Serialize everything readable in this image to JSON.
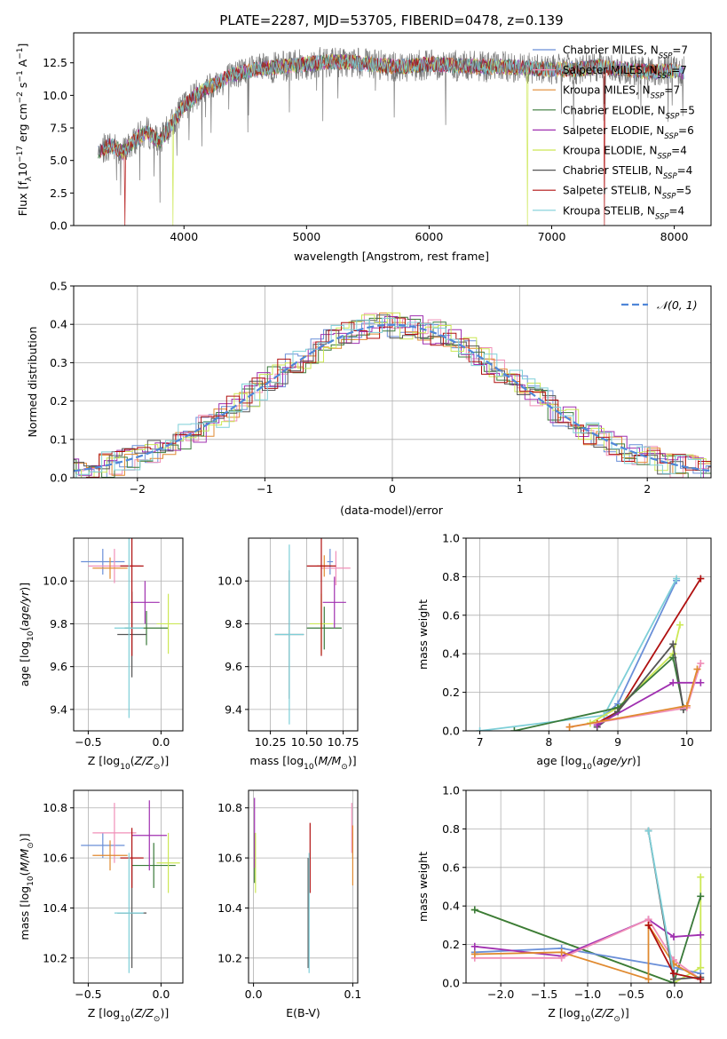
{
  "title": "PLATE=2287, MJD=53705, FIBERID=0478, z=0.139",
  "colors": {
    "Chabrier MILES": "#6a8fd8",
    "Salpeter MILES": "#f08fb8",
    "Kroupa MILES": "#e08a30",
    "Chabrier ELODIE": "#3a7a3a",
    "Salpeter ELODIE": "#a030b0",
    "Kroupa ELODIE": "#cce855",
    "Chabrier STELIB": "#555555",
    "Salpeter STELIB": "#b01010",
    "Kroupa STELIB": "#7ecfd8",
    "gaussian": "#4f86d8",
    "data": "#777777"
  },
  "chart_data": [
    {
      "type": "line",
      "xlabel": "wavelength [Angstrom, rest frame]",
      "ylabel": "Flux [f_λ 10^-17 erg cm^-2 s^-1 A^-1]",
      "xlim": [
        3100,
        8300
      ],
      "ylim": [
        0,
        14.8
      ],
      "xticks": [
        "4000",
        "5000",
        "6000",
        "7000",
        "8000"
      ],
      "yticks": [
        "0.0",
        "2.5",
        "5.0",
        "7.5",
        "10.0",
        "12.5"
      ],
      "legend_position": "right",
      "legend": [
        {
          "model": "Chabrier MILES",
          "nssp": "7"
        },
        {
          "model": "Salpeter MILES",
          "nssp": "7"
        },
        {
          "model": "Kroupa MILES",
          "nssp": "7"
        },
        {
          "model": "Chabrier ELODIE",
          "nssp": "5"
        },
        {
          "model": "Salpeter ELODIE",
          "nssp": "6"
        },
        {
          "model": "Kroupa ELODIE",
          "nssp": "4"
        },
        {
          "model": "Chabrier STELIB",
          "nssp": "4"
        },
        {
          "model": "Salpeter STELIB",
          "nssp": "5"
        },
        {
          "model": "Kroupa STELIB",
          "nssp": "4"
        }
      ],
      "continuum": [
        [
          3300,
          5.6
        ],
        [
          3400,
          6.2
        ],
        [
          3500,
          5.6
        ],
        [
          3600,
          6.6
        ],
        [
          3700,
          7.2
        ],
        [
          3800,
          6.4
        ],
        [
          3900,
          7.8
        ],
        [
          4000,
          9.2
        ],
        [
          4100,
          10.0
        ],
        [
          4200,
          10.6
        ],
        [
          4400,
          11.6
        ],
        [
          4600,
          12.0
        ],
        [
          4800,
          12.2
        ],
        [
          5000,
          12.4
        ],
        [
          5200,
          12.6
        ],
        [
          5400,
          12.5
        ],
        [
          5600,
          12.3
        ],
        [
          5800,
          12.2
        ],
        [
          6000,
          12.4
        ],
        [
          6200,
          12.3
        ],
        [
          6400,
          12.2
        ],
        [
          6600,
          12.2
        ],
        [
          6800,
          12.1
        ],
        [
          7000,
          12.0
        ],
        [
          7200,
          12.0
        ],
        [
          7400,
          12.2
        ],
        [
          7600,
          12.0
        ],
        [
          7800,
          11.8
        ],
        [
          8000,
          11.9
        ],
        [
          8080,
          11.8
        ]
      ],
      "drops": [
        {
          "model": "Salpeter STELIB",
          "x": [
            3520,
            7430
          ]
        },
        {
          "model": "Kroupa ELODIE",
          "x": [
            3910,
            6800
          ]
        }
      ]
    },
    {
      "type": "histogram",
      "xlabel": "(data-model)/error",
      "ylabel": "Normed distribution",
      "xlim": [
        -2.5,
        2.5
      ],
      "ylim": [
        0,
        0.5
      ],
      "xticks": [
        "−2",
        "−1",
        "0",
        "1",
        "2"
      ],
      "yticks": [
        "0.0",
        "0.1",
        "0.2",
        "0.3",
        "0.4",
        "0.5"
      ],
      "grid": true,
      "legend_position": "top-right",
      "legend_label": "𝒩(0, 1)"
    },
    {
      "type": "errorbar",
      "xlabel": "Z [log10(Z/Z⊙)]",
      "ylabel": "age [log10(age/yr)]",
      "xlim": [
        -0.6,
        0.15
      ],
      "ylim": [
        9.3,
        10.2
      ],
      "xticks": [
        "−0.5",
        "0.0"
      ],
      "yticks": [
        "9.4",
        "9.6",
        "9.8",
        "10.0"
      ],
      "grid": true,
      "points": [
        {
          "model": "Chabrier MILES",
          "x": -0.4,
          "xerr": 0.15,
          "y": 10.09,
          "yerr": 0.06
        },
        {
          "model": "Salpeter MILES",
          "x": -0.32,
          "xerr": 0.18,
          "y": 10.07,
          "yerr": 0.08
        },
        {
          "model": "Kroupa MILES",
          "x": -0.35,
          "xerr": 0.12,
          "y": 10.06,
          "yerr": 0.05
        },
        {
          "model": "Chabrier ELODIE",
          "x": -0.1,
          "xerr": 0.15,
          "y": 9.78,
          "yerr": 0.08
        },
        {
          "model": "Salpeter ELODIE",
          "x": -0.11,
          "xerr": 0.1,
          "y": 9.9,
          "yerr": 0.1
        },
        {
          "model": "Kroupa ELODIE",
          "x": 0.05,
          "xerr": 0.08,
          "y": 9.8,
          "yerr": 0.14
        },
        {
          "model": "Chabrier STELIB",
          "x": -0.2,
          "xerr": 0.1,
          "y": 9.75,
          "yerr": 0.2
        },
        {
          "model": "Salpeter STELIB",
          "x": -0.2,
          "xerr": 0.08,
          "y": 10.07,
          "yerr": 0.42
        },
        {
          "model": "Kroupa STELIB",
          "x": -0.22,
          "xerr": 0.1,
          "y": 9.78,
          "yerr": 0.42
        }
      ]
    },
    {
      "type": "errorbar",
      "xlabel": "mass [log10(M/M⊙)]",
      "ylabel": "",
      "xlim": [
        10.1,
        10.85
      ],
      "ylim": [
        9.3,
        10.2
      ],
      "xticks": [
        "10.25",
        "10.50",
        "10.75"
      ],
      "yticks": [
        "9.4",
        "9.6",
        "9.8",
        "10.0"
      ],
      "grid": true,
      "points": [
        {
          "model": "Chabrier MILES",
          "x": 10.66,
          "xerr": 0.02,
          "y": 10.09,
          "yerr": 0.06
        },
        {
          "model": "Salpeter MILES",
          "x": 10.7,
          "xerr": 0.1,
          "y": 10.06,
          "yerr": 0.08
        },
        {
          "model": "Kroupa MILES",
          "x": 10.62,
          "xerr": 0.05,
          "y": 10.07,
          "yerr": 0.05
        },
        {
          "model": "Chabrier ELODIE",
          "x": 10.62,
          "xerr": 0.12,
          "y": 9.78,
          "yerr": 0.1
        },
        {
          "model": "Salpeter ELODIE",
          "x": 10.69,
          "xerr": 0.08,
          "y": 9.9,
          "yerr": 0.12
        },
        {
          "model": "Kroupa ELODIE",
          "x": 10.6,
          "xerr": 0.08,
          "y": 9.8,
          "yerr": 0.14
        },
        {
          "model": "Chabrier STELIB",
          "x": 10.38,
          "xerr": 0.1,
          "y": 9.75,
          "yerr": 0.3
        },
        {
          "model": "Salpeter STELIB",
          "x": 10.6,
          "xerr": 0.1,
          "y": 10.07,
          "yerr": 0.42
        },
        {
          "model": "Kroupa STELIB",
          "x": 10.38,
          "xerr": 0.1,
          "y": 9.75,
          "yerr": 0.42
        }
      ]
    },
    {
      "type": "line",
      "xlabel": "age [log10(age/yr)]",
      "ylabel": "mass weight",
      "xlim": [
        6.8,
        10.35
      ],
      "ylim": [
        0,
        1.0
      ],
      "xticks": [
        "7",
        "8",
        "9",
        "10"
      ],
      "yticks": [
        "0.0",
        "0.2",
        "0.4",
        "0.6",
        "0.8",
        "1.0"
      ],
      "grid": true,
      "series": [
        {
          "model": "Chabrier MILES",
          "x": [
            8.8,
            9.0,
            9.85
          ],
          "y": [
            0.08,
            0.14,
            0.78
          ]
        },
        {
          "model": "Kroupa STELIB",
          "x": [
            7.0,
            8.8,
            9.85
          ],
          "y": [
            0.0,
            0.08,
            0.79
          ]
        },
        {
          "model": "Salpeter STELIB",
          "x": [
            8.7,
            9.0,
            10.2
          ],
          "y": [
            0.04,
            0.1,
            0.79
          ]
        },
        {
          "model": "Kroupa ELODIE",
          "x": [
            8.6,
            9.0,
            9.8,
            9.9
          ],
          "y": [
            0.04,
            0.12,
            0.4,
            0.55
          ]
        },
        {
          "model": "Chabrier ELODIE",
          "x": [
            7.5,
            9.0,
            9.8,
            9.95
          ],
          "y": [
            0.0,
            0.12,
            0.38,
            0.12
          ]
        },
        {
          "model": "Chabrier STELIB",
          "x": [
            8.7,
            9.0,
            9.8,
            9.95
          ],
          "y": [
            0.02,
            0.1,
            0.45,
            0.11
          ]
        },
        {
          "model": "Salpeter ELODIE",
          "x": [
            8.7,
            9.8,
            10.2
          ],
          "y": [
            0.03,
            0.25,
            0.25
          ]
        },
        {
          "model": "Salpeter MILES",
          "x": [
            8.3,
            10.0,
            10.2
          ],
          "y": [
            0.02,
            0.12,
            0.35
          ]
        },
        {
          "model": "Kroupa MILES",
          "x": [
            8.3,
            10.0,
            10.15
          ],
          "y": [
            0.02,
            0.13,
            0.32
          ]
        }
      ]
    },
    {
      "type": "errorbar",
      "xlabel": "Z [log10(Z/Z⊙)]",
      "ylabel": "mass [log10(M/M⊙)]",
      "xlim": [
        -0.6,
        0.15
      ],
      "ylim": [
        10.1,
        10.87
      ],
      "xticks": [
        "−0.5",
        "0.0"
      ],
      "yticks": [
        "10.2",
        "10.4",
        "10.6",
        "10.8"
      ],
      "grid": true,
      "points": [
        {
          "model": "Chabrier MILES",
          "x": -0.4,
          "xerr": 0.15,
          "y": 10.65,
          "yerr": 0.05
        },
        {
          "model": "Salpeter MILES",
          "x": -0.32,
          "xerr": 0.15,
          "y": 10.7,
          "yerr": 0.12
        },
        {
          "model": "Kroupa MILES",
          "x": -0.35,
          "xerr": 0.12,
          "y": 10.61,
          "yerr": 0.06
        },
        {
          "model": "Chabrier ELODIE",
          "x": -0.05,
          "xerr": 0.15,
          "y": 10.57,
          "yerr": 0.09
        },
        {
          "model": "Salpeter ELODIE",
          "x": -0.08,
          "xerr": 0.12,
          "y": 10.69,
          "yerr": 0.14
        },
        {
          "model": "Kroupa ELODIE",
          "x": 0.05,
          "xerr": 0.08,
          "y": 10.58,
          "yerr": 0.12
        },
        {
          "model": "Chabrier STELIB",
          "x": -0.2,
          "xerr": 0.1,
          "y": 10.38,
          "yerr": 0.22
        },
        {
          "model": "Salpeter STELIB",
          "x": -0.2,
          "xerr": 0.08,
          "y": 10.6,
          "yerr": 0.12
        },
        {
          "model": "Kroupa STELIB",
          "x": -0.22,
          "xerr": 0.1,
          "y": 10.38,
          "yerr": 0.24
        }
      ]
    },
    {
      "type": "errorbar",
      "xlabel": "E(B-V)",
      "ylabel": "",
      "xlim": [
        -0.005,
        0.105
      ],
      "ylim": [
        10.1,
        10.87
      ],
      "xticks": [
        "0.0",
        "0.1"
      ],
      "yticks": [
        "10.2",
        "10.4",
        "10.6",
        "10.8"
      ],
      "grid": true,
      "points": [
        {
          "model": "Chabrier MILES",
          "x": 0.1,
          "xerr": 0.0,
          "y": 10.65,
          "yerr": 0.05
        },
        {
          "model": "Salpeter MILES",
          "x": 0.099,
          "xerr": 0.0,
          "y": 10.72,
          "yerr": 0.1
        },
        {
          "model": "Kroupa MILES",
          "x": 0.1,
          "xerr": 0.0,
          "y": 10.61,
          "yerr": 0.12
        },
        {
          "model": "Chabrier ELODIE",
          "x": 0.001,
          "xerr": 0.0,
          "y": 10.6,
          "yerr": 0.1
        },
        {
          "model": "Salpeter ELODIE",
          "x": 0.001,
          "xerr": 0.0,
          "y": 10.7,
          "yerr": 0.14
        },
        {
          "model": "Kroupa ELODIE",
          "x": 0.002,
          "xerr": 0.0,
          "y": 10.58,
          "yerr": 0.12
        },
        {
          "model": "Chabrier STELIB",
          "x": 0.055,
          "xerr": 0.0,
          "y": 10.38,
          "yerr": 0.22
        },
        {
          "model": "Salpeter STELIB",
          "x": 0.057,
          "xerr": 0.0,
          "y": 10.6,
          "yerr": 0.14
        },
        {
          "model": "Kroupa STELIB",
          "x": 0.056,
          "xerr": 0.0,
          "y": 10.38,
          "yerr": 0.24
        }
      ]
    },
    {
      "type": "line",
      "xlabel": "Z [log10(Z/Z⊙)]",
      "ylabel": "mass weight",
      "xlim": [
        -2.4,
        0.42
      ],
      "ylim": [
        0,
        1.0
      ],
      "xticks": [
        "−2.0",
        "−1.5",
        "−1.0",
        "−0.5",
        "0.0"
      ],
      "yticks": [
        "0.0",
        "0.2",
        "0.4",
        "0.6",
        "0.8",
        "1.0"
      ],
      "grid": true,
      "series": [
        {
          "model": "Kroupa ELODIE",
          "x": [
            -2.3,
            -0.01,
            0.3,
            0.3
          ],
          "y": [
            0.38,
            0.0,
            0.08,
            0.55
          ]
        },
        {
          "model": "Chabrier ELODIE",
          "x": [
            -2.3,
            -0.01,
            0.3
          ],
          "y": [
            0.38,
            0.0,
            0.45
          ]
        },
        {
          "model": "Chabrier MILES",
          "x": [
            -2.3,
            -1.3,
            -0.01,
            0.3
          ],
          "y": [
            0.16,
            0.18,
            0.08,
            0.05
          ]
        },
        {
          "model": "Salpeter ELODIE",
          "x": [
            -2.3,
            -1.3,
            -0.3,
            -0.01,
            0.3
          ],
          "y": [
            0.19,
            0.14,
            0.33,
            0.24,
            0.25
          ]
        },
        {
          "model": "Salpeter MILES",
          "x": [
            -2.3,
            -1.3,
            -0.3,
            -0.01,
            0.3
          ],
          "y": [
            0.13,
            0.13,
            0.33,
            0.12,
            0.02
          ]
        },
        {
          "model": "Kroupa MILES",
          "x": [
            -2.3,
            -1.3,
            -0.3,
            -0.3,
            -0.01,
            0.3
          ],
          "y": [
            0.15,
            0.16,
            0.02,
            0.3,
            0.1,
            0.02
          ]
        },
        {
          "model": "Chabrier STELIB",
          "x": [
            -0.3,
            -0.01,
            0.3
          ],
          "y": [
            0.79,
            0.02,
            0.03
          ]
        },
        {
          "model": "Kroupa STELIB",
          "x": [
            -0.3,
            -0.01,
            0.3
          ],
          "y": [
            0.79,
            0.05,
            0.02
          ]
        },
        {
          "model": "Salpeter STELIB",
          "x": [
            -0.3,
            -0.01,
            0.3
          ],
          "y": [
            0.3,
            0.05,
            0.02
          ]
        }
      ]
    }
  ]
}
